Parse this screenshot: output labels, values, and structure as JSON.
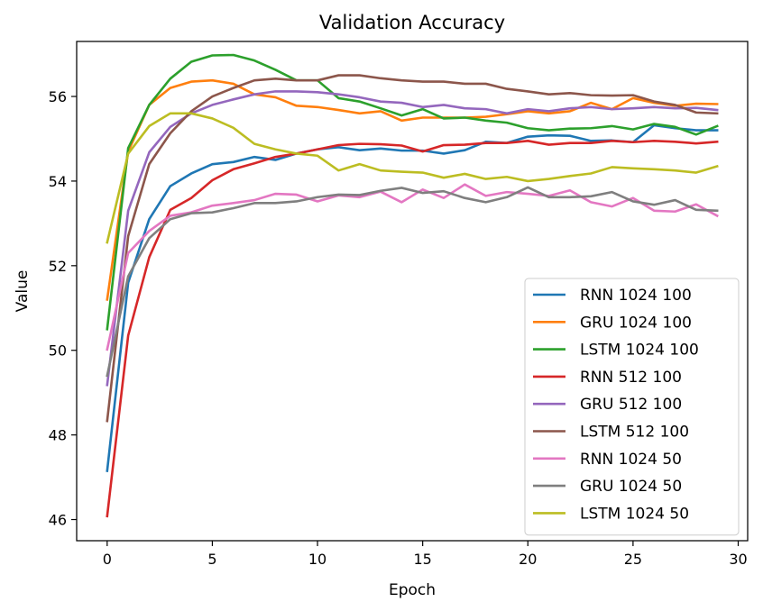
{
  "chart_data": {
    "type": "line",
    "title": "Validation Accuracy",
    "xlabel": "Epoch",
    "ylabel": "Value",
    "xlim": [
      -1.45,
      30.45
    ],
    "ylim": [
      45.5,
      57.3
    ],
    "xticks": [
      0,
      5,
      10,
      15,
      20,
      25,
      30
    ],
    "xtick_labels": [
      "0",
      "5",
      "10",
      "15",
      "20",
      "25",
      "30"
    ],
    "yticks": [
      46,
      48,
      50,
      52,
      54,
      56
    ],
    "ytick_labels": [
      "46",
      "48",
      "50",
      "52",
      "54",
      "56"
    ],
    "grid": false,
    "legend_position": "bottom-right",
    "x": [
      0,
      1,
      2,
      3,
      4,
      5,
      6,
      7,
      8,
      9,
      10,
      11,
      12,
      13,
      14,
      15,
      16,
      17,
      18,
      19,
      20,
      21,
      22,
      23,
      24,
      25,
      26,
      27,
      28,
      29
    ],
    "series": [
      {
        "name": "RNN 1024 100",
        "color": "#1f77b4",
        "values": [
          47.15,
          51.6,
          53.1,
          53.88,
          54.18,
          54.4,
          54.45,
          54.57,
          54.5,
          54.65,
          54.75,
          54.8,
          54.73,
          54.77,
          54.72,
          54.72,
          54.65,
          54.73,
          54.93,
          54.9,
          55.05,
          55.08,
          55.07,
          54.95,
          54.96,
          54.92,
          55.32,
          55.25,
          55.2,
          55.2
        ]
      },
      {
        "name": "GRU 1024 100",
        "color": "#ff7f0e",
        "values": [
          51.2,
          54.7,
          55.8,
          56.2,
          56.35,
          56.38,
          56.3,
          56.05,
          55.98,
          55.78,
          55.75,
          55.68,
          55.6,
          55.65,
          55.43,
          55.5,
          55.5,
          55.5,
          55.52,
          55.58,
          55.65,
          55.6,
          55.65,
          55.85,
          55.7,
          55.96,
          55.85,
          55.78,
          55.83,
          55.82
        ]
      },
      {
        "name": "LSTM 1024 100",
        "color": "#2ca02c",
        "values": [
          50.5,
          54.78,
          55.8,
          56.42,
          56.82,
          56.97,
          56.98,
          56.85,
          56.63,
          56.38,
          56.38,
          55.96,
          55.88,
          55.72,
          55.55,
          55.7,
          55.48,
          55.5,
          55.43,
          55.38,
          55.25,
          55.2,
          55.24,
          55.25,
          55.3,
          55.22,
          55.35,
          55.28,
          55.1,
          55.3
        ]
      },
      {
        "name": "RNN 512 100",
        "color": "#d62728",
        "values": [
          46.08,
          50.35,
          52.2,
          53.32,
          53.6,
          54.02,
          54.28,
          54.42,
          54.57,
          54.65,
          54.75,
          54.85,
          54.88,
          54.87,
          54.84,
          54.7,
          54.85,
          54.86,
          54.9,
          54.9,
          54.95,
          54.86,
          54.9,
          54.9,
          54.95,
          54.92,
          54.95,
          54.93,
          54.89,
          54.93
        ]
      },
      {
        "name": "GRU 512 100",
        "color": "#9467bd",
        "values": [
          49.18,
          53.3,
          54.68,
          55.28,
          55.6,
          55.8,
          55.93,
          56.05,
          56.12,
          56.12,
          56.1,
          56.05,
          55.98,
          55.88,
          55.85,
          55.75,
          55.8,
          55.72,
          55.7,
          55.6,
          55.7,
          55.65,
          55.72,
          55.75,
          55.7,
          55.72,
          55.75,
          55.72,
          55.73,
          55.68
        ]
      },
      {
        "name": "LSTM 512 100",
        "color": "#8c564b",
        "values": [
          48.33,
          52.7,
          54.4,
          55.13,
          55.65,
          56.0,
          56.2,
          56.38,
          56.42,
          56.38,
          56.38,
          56.5,
          56.5,
          56.43,
          56.38,
          56.35,
          56.35,
          56.3,
          56.3,
          56.18,
          56.12,
          56.05,
          56.08,
          56.03,
          56.02,
          56.03,
          55.88,
          55.8,
          55.62,
          55.6
        ]
      },
      {
        "name": "RNN 1024 50",
        "color": "#e377c2",
        "values": [
          50.02,
          52.3,
          52.82,
          53.18,
          53.26,
          53.42,
          53.48,
          53.55,
          53.7,
          53.68,
          53.52,
          53.66,
          53.62,
          53.75,
          53.5,
          53.8,
          53.6,
          53.92,
          53.65,
          53.74,
          53.7,
          53.65,
          53.78,
          53.5,
          53.4,
          53.6,
          53.3,
          53.28,
          53.45,
          53.18
        ]
      },
      {
        "name": "GRU 1024 50",
        "color": "#7f7f7f",
        "values": [
          49.4,
          51.75,
          52.65,
          53.1,
          53.24,
          53.26,
          53.36,
          53.48,
          53.48,
          53.52,
          53.62,
          53.68,
          53.67,
          53.77,
          53.84,
          53.72,
          53.76,
          53.6,
          53.5,
          53.62,
          53.85,
          53.62,
          53.62,
          53.64,
          53.74,
          53.52,
          53.44,
          53.55,
          53.32,
          53.3
        ]
      },
      {
        "name": "LSTM 1024 50",
        "color": "#bcbd22",
        "values": [
          52.55,
          54.65,
          55.3,
          55.6,
          55.6,
          55.48,
          55.26,
          54.88,
          54.75,
          54.65,
          54.6,
          54.25,
          54.4,
          54.25,
          54.22,
          54.2,
          54.08,
          54.17,
          54.05,
          54.1,
          54.0,
          54.05,
          54.12,
          54.18,
          54.33,
          54.3,
          54.28,
          54.25,
          54.2,
          54.35
        ]
      }
    ]
  }
}
